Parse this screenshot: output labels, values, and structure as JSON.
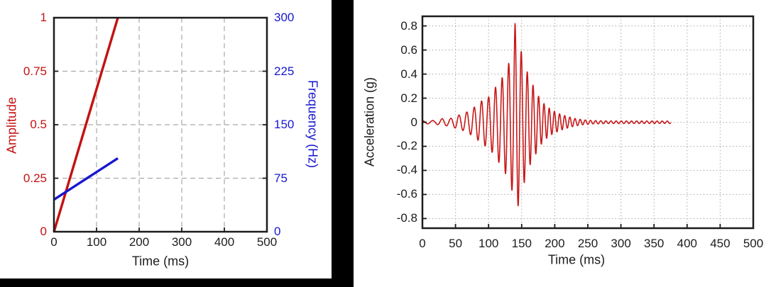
{
  "page": {
    "background": "#ffffff",
    "left_panel_frame_color": "#000000"
  },
  "colors": {
    "amplitude_red": "#c41111",
    "frequency_blue": "#1717cf",
    "signal_red": "#c81818",
    "axis_black": "#1c1c1c",
    "grid_gray_dashed": "#a9a9a9",
    "grid_gray_dotted": "#b3b3b3"
  },
  "chart_data": [
    {
      "id": "sweep-profile",
      "type": "line",
      "title": "",
      "xlabel": "Time (ms)",
      "xlim": [
        0,
        500
      ],
      "x_ticks": [
        "0",
        "100",
        "200",
        "300",
        "400",
        "500"
      ],
      "x_tick_values": [
        0,
        100,
        200,
        300,
        400,
        500
      ],
      "left_axis": {
        "label": "Amplitude",
        "color": "#c41111",
        "lim": [
          0,
          1
        ],
        "ticks": [
          "0",
          "0.25",
          "0.5",
          "0.75",
          "1"
        ],
        "tick_values": [
          0,
          0.25,
          0.5,
          0.75,
          1
        ]
      },
      "right_axis": {
        "label": "Frequency (Hz)",
        "color": "#1717cf",
        "lim": [
          0,
          300
        ],
        "ticks": [
          "0",
          "75",
          "150",
          "225",
          "300"
        ],
        "tick_values": [
          0,
          75,
          150,
          225,
          300
        ]
      },
      "grid": {
        "style": "dashed",
        "color": "#a9a9a9",
        "x_lines": [
          100,
          200,
          300,
          400
        ],
        "y_lines_left_units": [
          0.25,
          0.5,
          0.75
        ]
      },
      "legend": "none",
      "series": [
        {
          "name": "amplitude-ramp",
          "axis": "left",
          "color": "#c41111",
          "points_t_v": [
            [
              0,
              0
            ],
            [
              150,
              1.0
            ]
          ]
        },
        {
          "name": "frequency-sweep",
          "axis": "right",
          "color": "#1717cf",
          "points_t_v": [
            [
              0,
              45
            ],
            [
              150,
              103
            ]
          ]
        }
      ]
    },
    {
      "id": "acceleration-response",
      "type": "line",
      "title": "",
      "xlabel": "Time (ms)",
      "ylabel": "Acceleration (g)",
      "xlim": [
        0,
        500
      ],
      "x_ticks": [
        "0",
        "50",
        "100",
        "150",
        "200",
        "250",
        "300",
        "350",
        "400",
        "450",
        "500"
      ],
      "x_tick_values": [
        0,
        50,
        100,
        150,
        200,
        250,
        300,
        350,
        400,
        450,
        500
      ],
      "ylim": [
        -0.88,
        0.88
      ],
      "y_ticks": [
        "0.8",
        "0.6",
        "0.4",
        "0.2",
        "0",
        "-0.2",
        "-0.4",
        "-0.6",
        "-0.8"
      ],
      "y_tick_values": [
        0.8,
        0.6,
        0.4,
        0.2,
        0,
        -0.2,
        -0.4,
        -0.6,
        -0.8
      ],
      "grid": {
        "style": "dotted",
        "color": "#b3b3b3",
        "x_lines": [
          50,
          100,
          150,
          200,
          250,
          300,
          350,
          400,
          450
        ],
        "y_lines": [
          0.8,
          0.6,
          0.4,
          0.2,
          0,
          -0.2,
          -0.4,
          -0.6,
          -0.8
        ]
      },
      "legend": "none",
      "signal": {
        "name": "swept-sine-resonance-response",
        "color": "#c81818",
        "t_range_ms": [
          0,
          375
        ],
        "peak_g": 0.82,
        "min_g": -0.75,
        "peak_time_ms": 140,
        "envelope_t_g": [
          [
            0,
            0.012
          ],
          [
            20,
            0.015
          ],
          [
            30,
            0.03
          ],
          [
            42,
            0.03
          ],
          [
            52,
            0.055
          ],
          [
            62,
            0.07
          ],
          [
            72,
            0.1
          ],
          [
            82,
            0.14
          ],
          [
            92,
            0.19
          ],
          [
            100,
            0.21
          ],
          [
            108,
            0.27
          ],
          [
            115,
            0.33
          ],
          [
            122,
            0.38
          ],
          [
            128,
            0.46
          ],
          [
            133,
            0.52
          ],
          [
            137,
            0.6
          ],
          [
            140,
            0.82
          ],
          [
            143,
            0.74
          ],
          [
            147,
            0.63
          ],
          [
            152,
            0.54
          ],
          [
            157,
            0.44
          ],
          [
            163,
            0.35
          ],
          [
            170,
            0.28
          ],
          [
            177,
            0.2
          ],
          [
            186,
            0.14
          ],
          [
            196,
            0.1
          ],
          [
            207,
            0.07
          ],
          [
            218,
            0.05
          ],
          [
            230,
            0.032
          ],
          [
            243,
            0.02
          ],
          [
            258,
            0.014
          ],
          [
            280,
            0.011
          ],
          [
            375,
            0.01
          ]
        ],
        "frequency_sweep_t_hz": [
          [
            0,
            62
          ],
          [
            60,
            85
          ],
          [
            120,
            100
          ],
          [
            150,
            108
          ],
          [
            190,
            128
          ],
          [
            375,
            130
          ]
        ]
      }
    }
  ]
}
